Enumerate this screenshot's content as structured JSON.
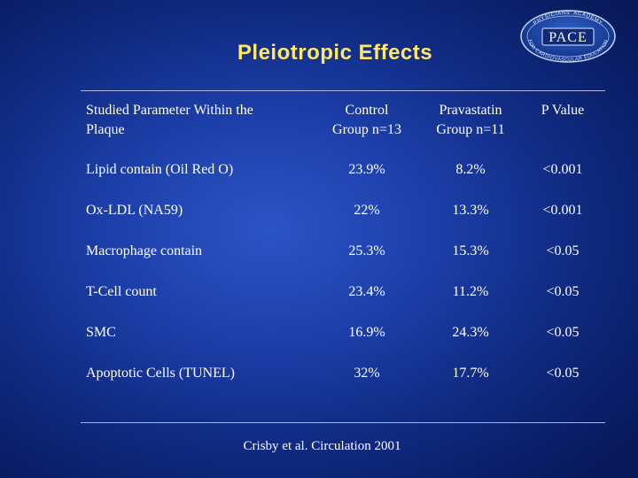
{
  "logo": {
    "top_arc_text": "PHYSICIANS' ACADEMY",
    "name": "PACE",
    "bottom_arc_text": "FOR CARDIOVASCULAR EDUCATION"
  },
  "title": "Pleiotropic Effects",
  "table": {
    "headers": [
      [
        "Studied Parameter Within the",
        "Plaque"
      ],
      [
        "Control",
        "Group n=13"
      ],
      [
        "Pravastatin",
        "Group n=11"
      ],
      [
        "P Value"
      ]
    ],
    "rows": [
      {
        "parameter": "Lipid contain (Oil Red O)",
        "control": "23.9%",
        "pravastatin": "8.2%",
        "p_value": "<0.001"
      },
      {
        "parameter": "Ox-LDL (NA59)",
        "control": "22%",
        "pravastatin": "13.3%",
        "p_value": "<0.001"
      },
      {
        "parameter": "Macrophage contain",
        "control": "25.3%",
        "pravastatin": "15.3%",
        "p_value": "<0.05"
      },
      {
        "parameter": "T-Cell count",
        "control": "23.4%",
        "pravastatin": "11.2%",
        "p_value": "<0.05"
      },
      {
        "parameter": "SMC",
        "control": "16.9%",
        "pravastatin": "24.3%",
        "p_value": "<0.05"
      },
      {
        "parameter": "Apoptotic Cells (TUNEL)",
        "control": "32%",
        "pravastatin": "17.7%",
        "p_value": "<0.05"
      }
    ]
  },
  "citation": "Crisby et al. Circulation 2001"
}
